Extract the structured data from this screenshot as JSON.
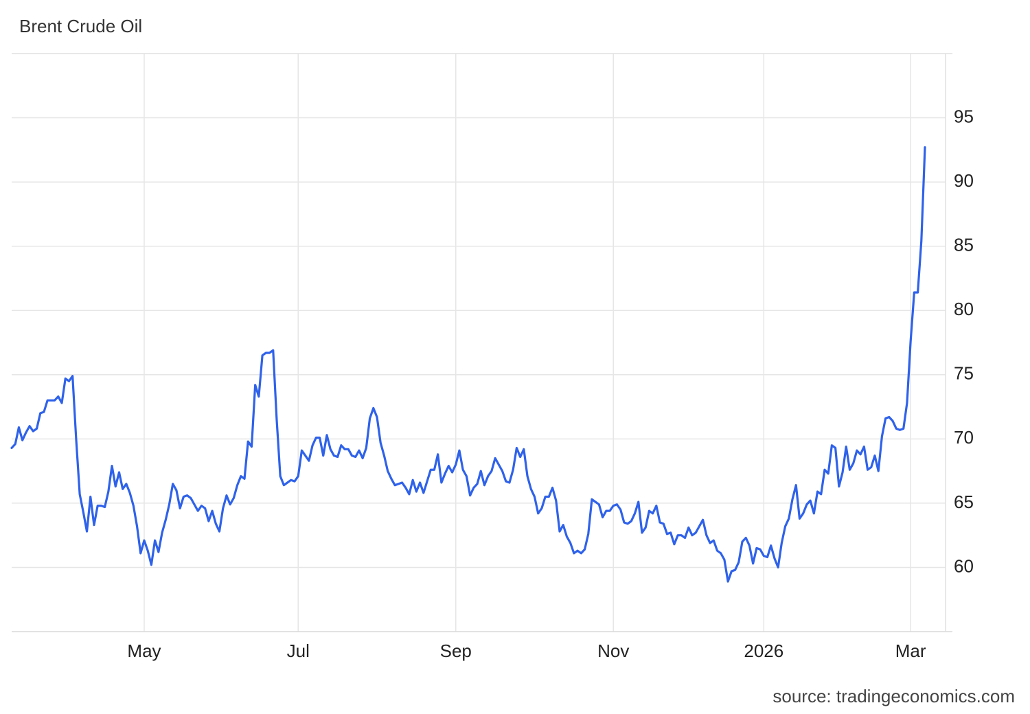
{
  "chart_data": {
    "type": "line",
    "title": "Brent Crude Oil",
    "source": "source: tradingeconomics.com",
    "categories": [
      null,
      null,
      null,
      null,
      null,
      null,
      null,
      null,
      null,
      null,
      null,
      null,
      null,
      null,
      null,
      null,
      null,
      null,
      null,
      null,
      null,
      null,
      null,
      null,
      null,
      null,
      null,
      null,
      null,
      null,
      null,
      null,
      null,
      null,
      null,
      null,
      null,
      "May",
      null,
      null,
      null,
      null,
      null,
      null,
      null,
      null,
      null,
      null,
      null,
      null,
      null,
      null,
      null,
      null,
      null,
      null,
      null,
      null,
      null,
      null,
      null,
      null,
      null,
      null,
      null,
      null,
      null,
      null,
      null,
      null,
      null,
      null,
      null,
      null,
      null,
      null,
      null,
      null,
      null,
      null,
      "Jul",
      null,
      null,
      null,
      null,
      null,
      null,
      null,
      null,
      null,
      null,
      null,
      null,
      null,
      null,
      null,
      null,
      null,
      null,
      null,
      null,
      null,
      null,
      null,
      null,
      null,
      null,
      null,
      null,
      null,
      null,
      null,
      null,
      null,
      null,
      null,
      null,
      null,
      null,
      null,
      null,
      null,
      null,
      null,
      "Sep",
      null,
      null,
      null,
      null,
      null,
      null,
      null,
      null,
      null,
      null,
      null,
      null,
      null,
      null,
      null,
      null,
      null,
      null,
      null,
      null,
      null,
      null,
      null,
      null,
      null,
      null,
      null,
      null,
      null,
      null,
      null,
      null,
      null,
      null,
      null,
      null,
      null,
      null,
      null,
      null,
      null,
      null,
      null,
      "Nov",
      null,
      null,
      null,
      null,
      null,
      null,
      null,
      null,
      null,
      null,
      null,
      null,
      null,
      null,
      null,
      null,
      null,
      null,
      null,
      null,
      null,
      null,
      null,
      null,
      null,
      null,
      null,
      null,
      null,
      null,
      null,
      null,
      null,
      null,
      null,
      null,
      null,
      null,
      null,
      null,
      null,
      "2026",
      null,
      null,
      null,
      null,
      null,
      null,
      null,
      null,
      null,
      null,
      null,
      null,
      null,
      null,
      null,
      null,
      null,
      null,
      null,
      null,
      null,
      null,
      null,
      null,
      null,
      null,
      null,
      null,
      null,
      null,
      null,
      null,
      null,
      null,
      null,
      null,
      null,
      null,
      null,
      null,
      "Mar",
      null,
      null,
      null,
      null
    ],
    "values": [
      69.3,
      69.6,
      70.9,
      69.9,
      70.5,
      71.0,
      70.6,
      70.8,
      72.0,
      72.1,
      73.0,
      73.0,
      73.0,
      73.3,
      72.8,
      74.7,
      74.5,
      74.9,
      70.0,
      65.7,
      64.3,
      62.8,
      65.5,
      63.3,
      64.8,
      64.8,
      64.7,
      65.9,
      67.9,
      66.3,
      67.4,
      66.1,
      66.5,
      65.8,
      64.8,
      63.2,
      61.1,
      62.1,
      61.3,
      60.2,
      62.1,
      61.2,
      62.7,
      63.7,
      64.9,
      66.5,
      66.0,
      64.6,
      65.5,
      65.6,
      65.4,
      64.9,
      64.4,
      64.8,
      64.6,
      63.6,
      64.4,
      63.4,
      62.8,
      64.6,
      65.6,
      64.9,
      65.4,
      66.4,
      67.1,
      66.9,
      69.8,
      69.4,
      74.2,
      73.3,
      76.5,
      76.7,
      76.7,
      76.9,
      71.5,
      67.1,
      66.4,
      66.6,
      66.8,
      66.7,
      67.1,
      69.1,
      68.7,
      68.3,
      69.5,
      70.1,
      70.1,
      68.7,
      70.3,
      69.2,
      68.7,
      68.6,
      69.5,
      69.2,
      69.2,
      68.7,
      68.6,
      69.1,
      68.5,
      69.3,
      71.6,
      72.4,
      71.7,
      69.7,
      68.7,
      67.5,
      66.9,
      66.4,
      66.5,
      66.6,
      66.2,
      65.7,
      66.8,
      65.9,
      66.6,
      65.8,
      66.7,
      67.6,
      67.6,
      68.8,
      66.6,
      67.3,
      67.9,
      67.4,
      68.0,
      69.1,
      67.6,
      67.1,
      65.6,
      66.2,
      66.5,
      67.5,
      66.4,
      67.1,
      67.5,
      68.5,
      68.0,
      67.5,
      66.7,
      66.6,
      67.6,
      69.3,
      68.6,
      69.2,
      67.1,
      66.1,
      65.5,
      64.2,
      64.6,
      65.5,
      65.5,
      66.2,
      65.2,
      62.8,
      63.3,
      62.4,
      61.9,
      61.1,
      61.3,
      61.1,
      61.4,
      62.6,
      65.3,
      65.1,
      64.9,
      63.9,
      64.4,
      64.4,
      64.8,
      64.9,
      64.5,
      63.5,
      63.4,
      63.6,
      64.2,
      65.1,
      62.7,
      63.1,
      64.4,
      64.2,
      64.8,
      63.5,
      63.4,
      62.6,
      62.7,
      61.8,
      62.5,
      62.5,
      62.3,
      63.1,
      62.5,
      62.7,
      63.2,
      63.7,
      62.5,
      61.9,
      62.1,
      61.3,
      61.1,
      60.6,
      58.9,
      59.7,
      59.8,
      60.4,
      62.0,
      62.3,
      61.7,
      60.3,
      61.5,
      61.4,
      60.9,
      60.8,
      61.7,
      60.7,
      60.0,
      61.9,
      63.2,
      63.8,
      65.3,
      66.4,
      63.8,
      64.2,
      64.9,
      65.2,
      64.2,
      65.9,
      65.7,
      67.6,
      67.3,
      69.5,
      69.3,
      66.3,
      67.4,
      69.4,
      67.6,
      68.1,
      69.1,
      68.8,
      69.4,
      67.6,
      67.8,
      68.7,
      67.5,
      70.2,
      71.6,
      71.7,
      71.4,
      70.8,
      70.7,
      70.8,
      72.8,
      77.6,
      81.4,
      81.4,
      85.4,
      92.7
    ],
    "color": "#2f62ea",
    "ylim": [
      55,
      100
    ],
    "yticks": [
      60,
      65,
      70,
      75,
      80,
      85,
      90,
      95
    ],
    "yaxis_side": "right",
    "grid": true
  }
}
